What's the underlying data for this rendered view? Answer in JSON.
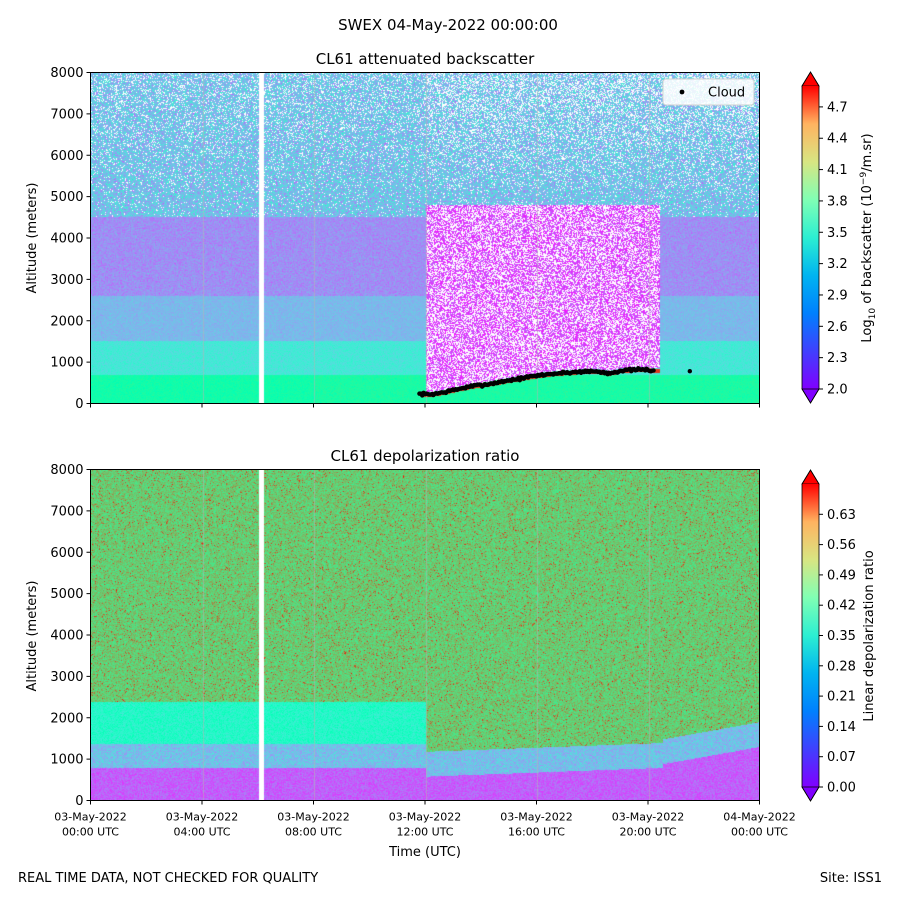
{
  "figure": {
    "suptitle": "SWEX 04-May-2022 00:00:00",
    "footer_left": "REAL TIME DATA, NOT CHECKED FOR QUALITY",
    "footer_right": "Site: ISS1"
  },
  "chart_data": [
    {
      "type": "heatmap",
      "title": "CL61 attenuated backscatter",
      "xlabel": "",
      "ylabel": "Altitude (meters)",
      "ylim": [
        0,
        8000
      ],
      "yticks": [
        0,
        1000,
        2000,
        3000,
        4000,
        5000,
        6000,
        7000,
        8000
      ],
      "xlim_hours": [
        0,
        24
      ],
      "xticks_hours": [
        0,
        4,
        8,
        12,
        16,
        20,
        24
      ],
      "gap_hours": [
        6.0,
        6.2
      ],
      "colormap": "rainbow",
      "colorbar": {
        "label_prefix": "Log",
        "label_sub": "10",
        "label_mid": " of backscatter (10",
        "label_sup": "−9",
        "label_suffix": "/m.sr)",
        "range": [
          2.0,
          4.9
        ],
        "ticks": [
          2.0,
          2.3,
          2.6,
          2.9,
          3.2,
          3.5,
          3.8,
          4.1,
          4.4,
          4.7
        ],
        "tick_labels": [
          "2.0",
          "2.3",
          "2.6",
          "2.9",
          "3.2",
          "3.5",
          "3.8",
          "4.1",
          "4.4",
          "4.7"
        ]
      },
      "legend": {
        "entries": [
          "Cloud"
        ],
        "location": "upper right"
      },
      "cloud_base": {
        "name": "Cloud",
        "x_hours": [
          11.8,
          12.2,
          12.6,
          13.0,
          13.4,
          13.8,
          14.2,
          14.6,
          15.0,
          15.4,
          15.8,
          16.2,
          16.6,
          17.0,
          17.4,
          17.8,
          18.2,
          18.6,
          19.0,
          19.4,
          19.8,
          20.2,
          21.5
        ],
        "altitude_m": [
          230,
          220,
          260,
          320,
          380,
          430,
          460,
          510,
          560,
          600,
          650,
          690,
          720,
          740,
          760,
          780,
          770,
          730,
          790,
          810,
          820,
          800,
          780
        ]
      }
    },
    {
      "type": "heatmap",
      "title": "CL61 depolarization ratio",
      "xlabel": "Time (UTC)",
      "ylabel": "Altitude (meters)",
      "ylim": [
        0,
        8000
      ],
      "yticks": [
        0,
        1000,
        2000,
        3000,
        4000,
        5000,
        6000,
        7000,
        8000
      ],
      "xlim_hours": [
        0,
        24
      ],
      "xticks_hours": [
        0,
        4,
        8,
        12,
        16,
        20,
        24
      ],
      "xtick_labels": [
        {
          "date": "03-May-2022",
          "time": "00:00 UTC"
        },
        {
          "date": "03-May-2022",
          "time": "04:00 UTC"
        },
        {
          "date": "03-May-2022",
          "time": "08:00 UTC"
        },
        {
          "date": "03-May-2022",
          "time": "12:00 UTC"
        },
        {
          "date": "03-May-2022",
          "time": "16:00 UTC"
        },
        {
          "date": "03-May-2022",
          "time": "20:00 UTC"
        },
        {
          "date": "04-May-2022",
          "time": "00:00 UTC"
        }
      ],
      "gap_hours": [
        6.0,
        6.2
      ],
      "colormap": "rainbow",
      "colorbar": {
        "label": "Linear depolarization ratio",
        "range": [
          0.0,
          0.7
        ],
        "ticks": [
          0.0,
          0.07,
          0.14,
          0.21,
          0.28,
          0.35,
          0.42,
          0.49,
          0.56,
          0.63
        ],
        "tick_labels": [
          "0.00",
          "0.07",
          "0.14",
          "0.21",
          "0.28",
          "0.35",
          "0.42",
          "0.49",
          "0.56",
          "0.63"
        ]
      }
    }
  ]
}
